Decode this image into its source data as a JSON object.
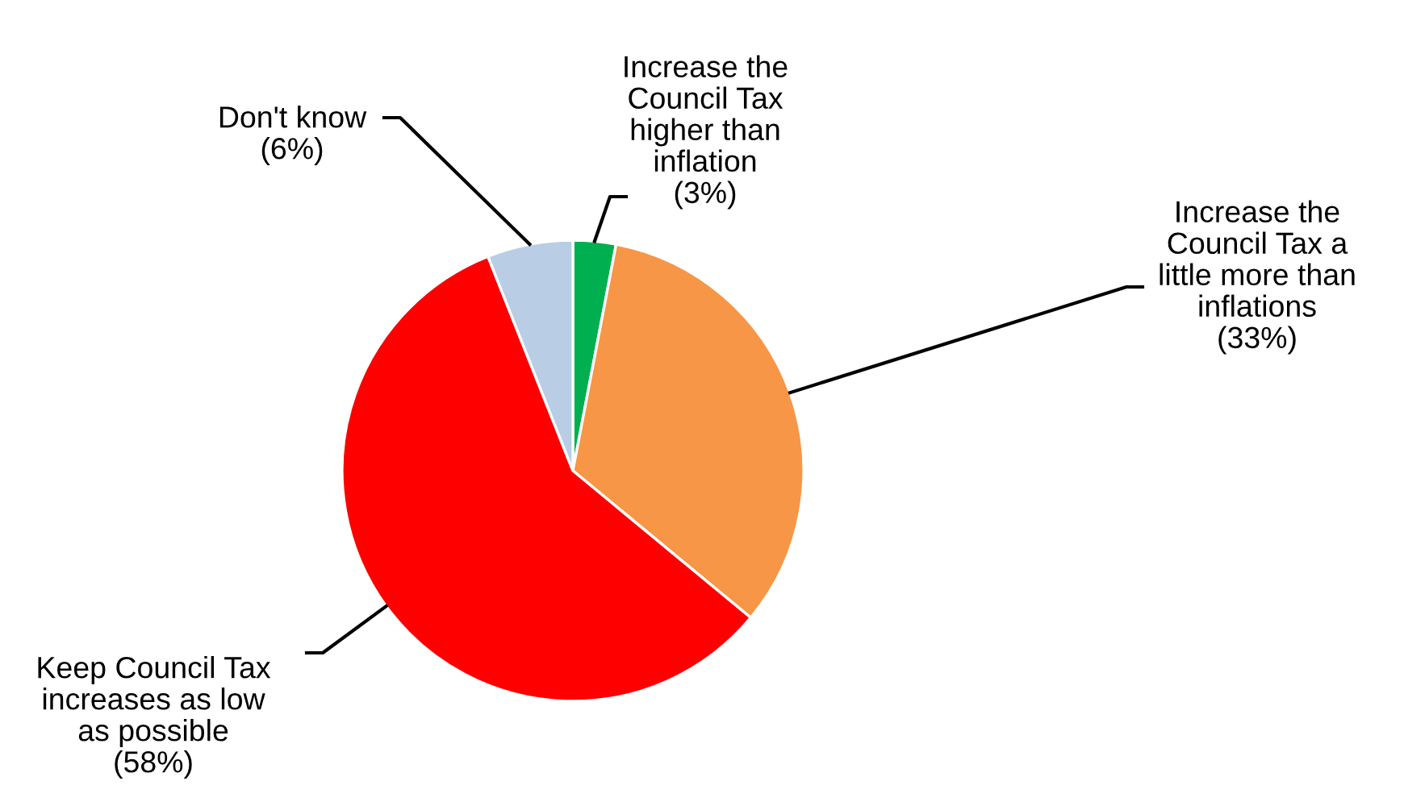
{
  "chart_data": {
    "type": "pie",
    "categories": [
      "Increase the\nCouncil Tax\nhigher than\ninflation",
      "Increase the\nCouncil Tax a\nlittle more than\ninflations",
      "Keep Council Tax\nincreases as low\nas possible",
      "Don't know"
    ],
    "values": [
      3,
      33,
      58,
      6
    ],
    "value_labels": [
      "(3%)",
      "(33%)",
      "(58%)",
      "(6%)"
    ],
    "colors": [
      "#00b050",
      "#f79646",
      "#ff0000",
      "#b9cde5"
    ],
    "legend": false
  }
}
